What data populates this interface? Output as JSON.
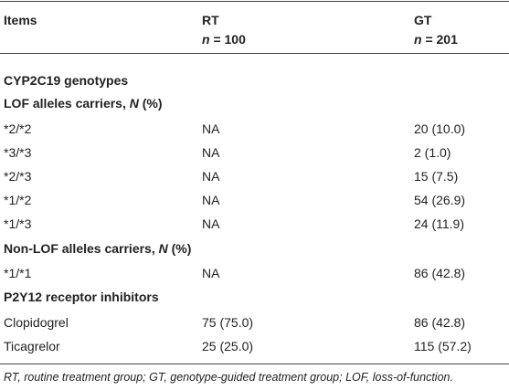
{
  "header": {
    "items": "Items",
    "rt": "RT",
    "rt_n_sym": "n",
    "rt_n_val": " = 100",
    "gt": "GT",
    "gt_n_sym": "n",
    "gt_n_val": " = 201"
  },
  "sections": {
    "cyp": "CYP2C19 genotypes",
    "lof_prefix": "LOF alleles carriers, ",
    "lof_n": "N",
    "lof_suffix": " (%)",
    "nonlof_prefix": "Non-LOF alleles carriers, ",
    "nonlof_n": "N",
    "nonlof_suffix": " (%)",
    "p2y12": "P2Y12 receptor inhibitors"
  },
  "rows": [
    {
      "item": "*2/*2",
      "rt": "NA",
      "gt": "20 (10.0)"
    },
    {
      "item": "*3/*3",
      "rt": "NA",
      "gt": "2 (1.0)"
    },
    {
      "item": "*2/*3",
      "rt": "NA",
      "gt": "15 (7.5)"
    },
    {
      "item": "*1/*2",
      "rt": "NA",
      "gt": "54 (26.9)"
    },
    {
      "item": "*1/*3",
      "rt": "NA",
      "gt": "24 (11.9)"
    },
    {
      "item": "*1/*1",
      "rt": "NA",
      "gt": "86 (42.8)"
    },
    {
      "item": "Clopidogrel",
      "rt": "75 (75.0)",
      "gt": "86 (42.8)"
    },
    {
      "item": "Ticagrelor",
      "rt": "25 (25.0)",
      "gt": "115 (57.2)"
    }
  ],
  "footnote": "RT, routine treatment group; GT, genotype-guided treatment group; LOF, loss-of-function."
}
